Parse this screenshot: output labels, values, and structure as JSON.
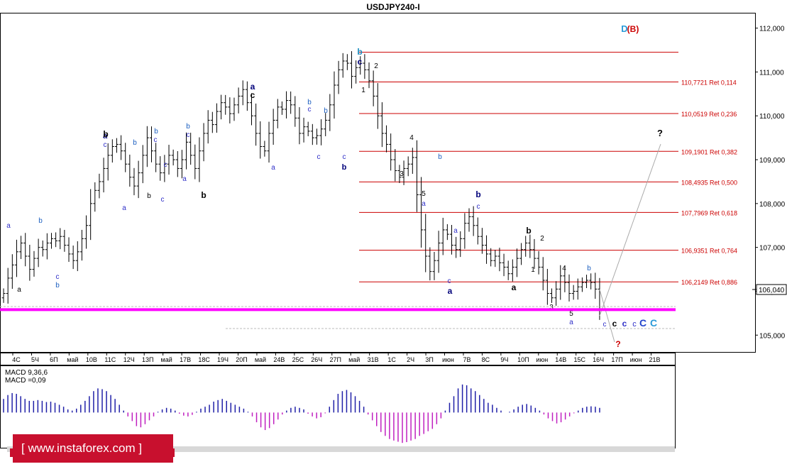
{
  "window": {
    "title": "USDJPY240-I",
    "price_badge": "106,040",
    "watermark": "[ www.instaforex.com ]"
  },
  "chart_data": {
    "type": "bar",
    "symbol": "USDJPY240-I",
    "ylim": [
      104.6,
      112.35
    ],
    "y_ticks": [
      {
        "value": 112.0,
        "label": "112,000"
      },
      {
        "value": 111.0,
        "label": "111,000"
      },
      {
        "value": 110.0,
        "label": "110,000"
      },
      {
        "value": 109.0,
        "label": "109,000"
      },
      {
        "value": 108.0,
        "label": "108,000"
      },
      {
        "value": 107.0,
        "label": "107,000"
      },
      {
        "value": 106.0,
        "label": "106,000"
      },
      {
        "value": 105.0,
        "label": "105,000"
      }
    ],
    "x_ticks": [
      "4С",
      "5Ч",
      "6П",
      "май",
      "10В",
      "11С",
      "12Ч",
      "13П",
      "май",
      "17В",
      "18С",
      "19Ч",
      "20П",
      "май",
      "24В",
      "25С",
      "26Ч",
      "27П",
      "май",
      "31В",
      "1С",
      "2Ч",
      "3П",
      "июн",
      "7В",
      "8С",
      "9Ч",
      "10П",
      "июн",
      "14В",
      "15С",
      "16Ч",
      "17П",
      "июн",
      "21В"
    ],
    "current_price": 106.04,
    "support_level": 105.58,
    "fibonacci_levels": [
      {
        "value": 111.45,
        "label": ""
      },
      {
        "value": 110.7721,
        "label": "110,7721 Ret 0,114"
      },
      {
        "value": 110.0519,
        "label": "110,0519 Ret 0,236"
      },
      {
        "value": 109.1901,
        "label": "109,1901 Ret 0,382"
      },
      {
        "value": 108.4935,
        "label": "108,4935 Ret 0,500"
      },
      {
        "value": 107.7969,
        "label": "107,7969 Ret 0,618"
      },
      {
        "value": 106.9351,
        "label": "106,9351 Ret 0,764"
      },
      {
        "value": 106.2149,
        "label": "106,2149 Ret 0,886"
      }
    ],
    "closes": [
      105.95,
      106.3,
      106.6,
      106.9,
      107.1,
      106.8,
      106.5,
      106.75,
      107.0,
      106.95,
      107.1,
      107.2,
      107.15,
      107.25,
      107.05,
      106.85,
      106.7,
      106.9,
      107.2,
      107.5,
      108.0,
      108.3,
      108.5,
      108.8,
      109.1,
      109.3,
      109.35,
      109.2,
      108.9,
      108.6,
      108.4,
      108.7,
      109.1,
      109.5,
      109.2,
      108.9,
      108.7,
      108.9,
      109.1,
      109.0,
      108.8,
      109.0,
      109.4,
      109.1,
      108.8,
      109.2,
      109.6,
      109.9,
      109.8,
      110.1,
      110.3,
      110.2,
      110.05,
      110.25,
      110.45,
      110.6,
      110.3,
      110.0,
      109.6,
      109.3,
      109.2,
      109.6,
      109.9,
      110.2,
      110.15,
      110.35,
      110.25,
      109.95,
      109.6,
      109.75,
      109.65,
      109.5,
      109.55,
      109.7,
      109.9,
      110.25,
      110.7,
      111.05,
      111.25,
      111.2,
      110.9,
      111.1,
      111.2,
      111.05,
      110.8,
      110.45,
      110.0,
      109.6,
      109.35,
      109.0,
      108.75,
      108.6,
      108.8,
      108.9,
      109.05,
      108.2,
      107.4,
      106.8,
      106.45,
      106.7,
      107.1,
      107.4,
      107.3,
      107.05,
      106.95,
      107.2,
      107.55,
      107.7,
      107.5,
      107.25,
      107.05,
      106.85,
      106.7,
      106.8,
      106.65,
      106.55,
      106.4,
      106.55,
      106.75,
      106.95,
      107.1,
      106.95,
      106.75,
      106.55,
      106.25,
      105.95,
      105.85,
      106.05,
      106.35,
      106.2,
      105.95,
      106.0,
      106.1,
      106.2,
      106.25,
      106.2,
      106.05,
      105.6
    ],
    "wave_labels": [
      {
        "text": "D",
        "color": "#2a9ad8"
      },
      {
        "text": "(B)",
        "color": "#cc0000"
      },
      {
        "text": "?",
        "color": "#000000"
      },
      {
        "text": "?",
        "color": "#cc0000"
      },
      {
        "text": "b",
        "color": "#1c8ec0"
      },
      {
        "text": "c",
        "color": "#00007a"
      },
      {
        "text": "a",
        "color": "#00007a"
      },
      {
        "text": "c",
        "color": "#000000"
      },
      {
        "text": "a",
        "color": "#000000"
      },
      {
        "text": "c",
        "color": "#3030c8"
      },
      {
        "text": "b",
        "color": "#000000"
      },
      {
        "text": "b",
        "color": "#00007a"
      },
      {
        "text": "a",
        "color": "#00007a"
      },
      {
        "text": "b",
        "color": "#000000"
      },
      {
        "text": "b",
        "color": "#000000"
      },
      {
        "text": "C",
        "color": "#2244cc"
      },
      {
        "text": "C",
        "color": "#2a9ad8"
      },
      {
        "text": "1",
        "color": "#000000"
      },
      {
        "text": "2",
        "color": "#000000"
      },
      {
        "text": "3",
        "color": "#000000"
      },
      {
        "text": "4",
        "color": "#000000"
      },
      {
        "text": "5",
        "color": "#000000"
      }
    ],
    "macd": {
      "label": "MACD 9,36,6",
      "value_label": "MACD =0,09",
      "positive_color": "#2020a8",
      "negative_color": "#c020c0",
      "values": [
        0.35,
        0.45,
        0.5,
        0.48,
        0.42,
        0.35,
        0.3,
        0.3,
        0.32,
        0.3,
        0.27,
        0.28,
        0.25,
        0.2,
        0.15,
        0.08,
        0.05,
        0.1,
        0.2,
        0.3,
        0.42,
        0.55,
        0.62,
        0.6,
        0.55,
        0.45,
        0.35,
        0.2,
        0.05,
        -0.1,
        -0.22,
        -0.35,
        -0.38,
        -0.3,
        -0.2,
        -0.1,
        0.02,
        0.08,
        0.12,
        0.1,
        0.05,
        -0.03,
        -0.08,
        -0.1,
        -0.06,
        0.02,
        0.1,
        0.15,
        0.2,
        0.28,
        0.32,
        0.35,
        0.3,
        0.25,
        0.2,
        0.15,
        0.1,
        0.02,
        -0.1,
        -0.25,
        -0.38,
        -0.45,
        -0.4,
        -0.3,
        -0.18,
        -0.05,
        0.05,
        0.12,
        0.15,
        0.12,
        0.08,
        -0.03,
        -0.1,
        -0.15,
        -0.12,
        -0.02,
        0.15,
        0.32,
        0.48,
        0.55,
        0.58,
        0.52,
        0.42,
        0.3,
        0.15,
        -0.05,
        -0.2,
        -0.35,
        -0.5,
        -0.6,
        -0.68,
        -0.72,
        -0.75,
        -0.78,
        -0.76,
        -0.72,
        -0.68,
        -0.6,
        -0.55,
        -0.48,
        -0.42,
        -0.3,
        -0.15,
        0.05,
        0.25,
        0.42,
        0.62,
        0.72,
        0.7,
        0.62,
        0.55,
        0.45,
        0.35,
        0.25,
        0.2,
        0.12,
        0.05,
        0.0,
        0.02,
        0.08,
        0.15,
        0.2,
        0.22,
        0.18,
        0.12,
        0.05,
        -0.05,
        -0.15,
        -0.22,
        -0.28,
        -0.25,
        -0.18,
        -0.1,
        -0.02,
        0.05,
        0.12,
        0.15,
        0.16,
        0.15,
        0.12
      ],
      "ylim": [
        -0.85,
        0.9
      ]
    }
  }
}
